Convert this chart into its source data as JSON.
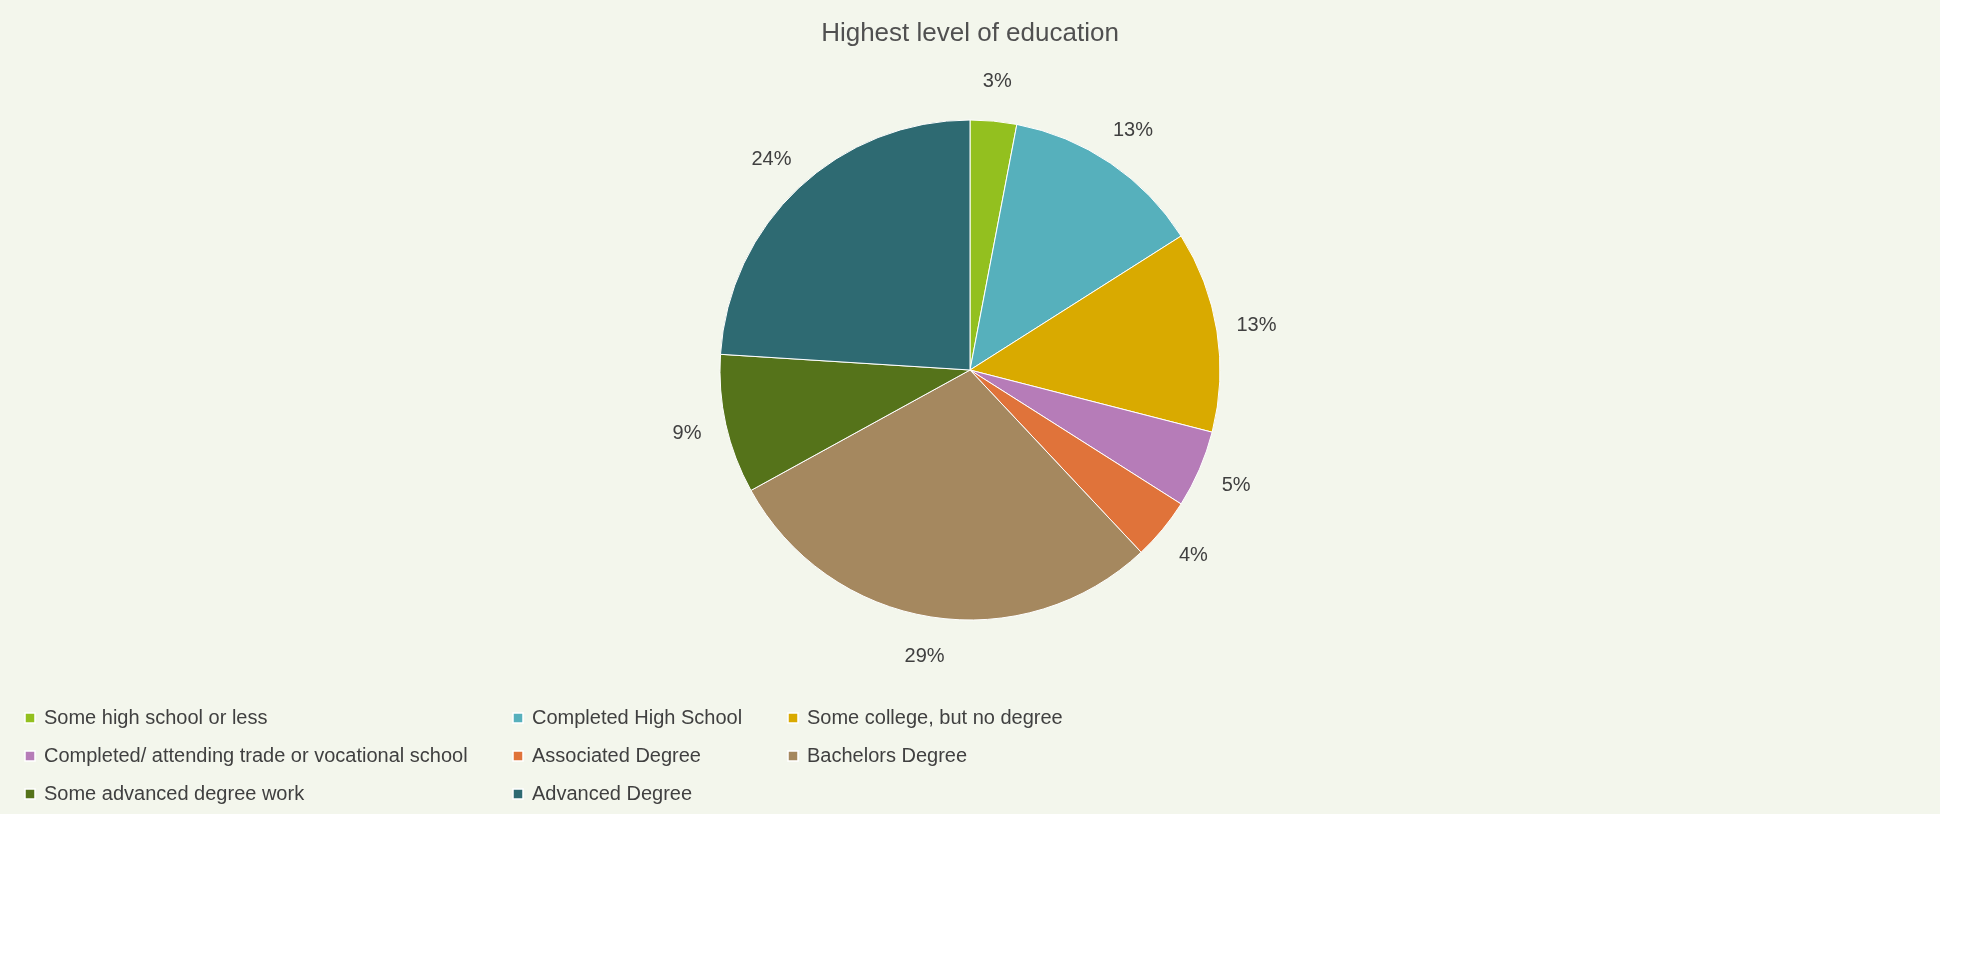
{
  "chart_data": {
    "type": "pie",
    "title": "Highest level of education",
    "categories": [
      "Some high school or less",
      "Completed High School",
      "Some college, but no degree",
      "Completed/ attending trade or vocational school",
      "Associated Degree",
      "Bachelors Degree",
      "Some advanced degree work",
      "Advanced Degree"
    ],
    "values": [
      3,
      13,
      13,
      5,
      4,
      29,
      9,
      24
    ],
    "value_labels": [
      "3%",
      "13%",
      "13%",
      "5%",
      "4%",
      "29%",
      "9%",
      "24%"
    ],
    "colors": [
      "#93c01f",
      "#56b0bc",
      "#d9aa00",
      "#b67cb8",
      "#e0733a",
      "#a5885f",
      "#55731a",
      "#2e6a72"
    ],
    "legend": "bottom"
  }
}
